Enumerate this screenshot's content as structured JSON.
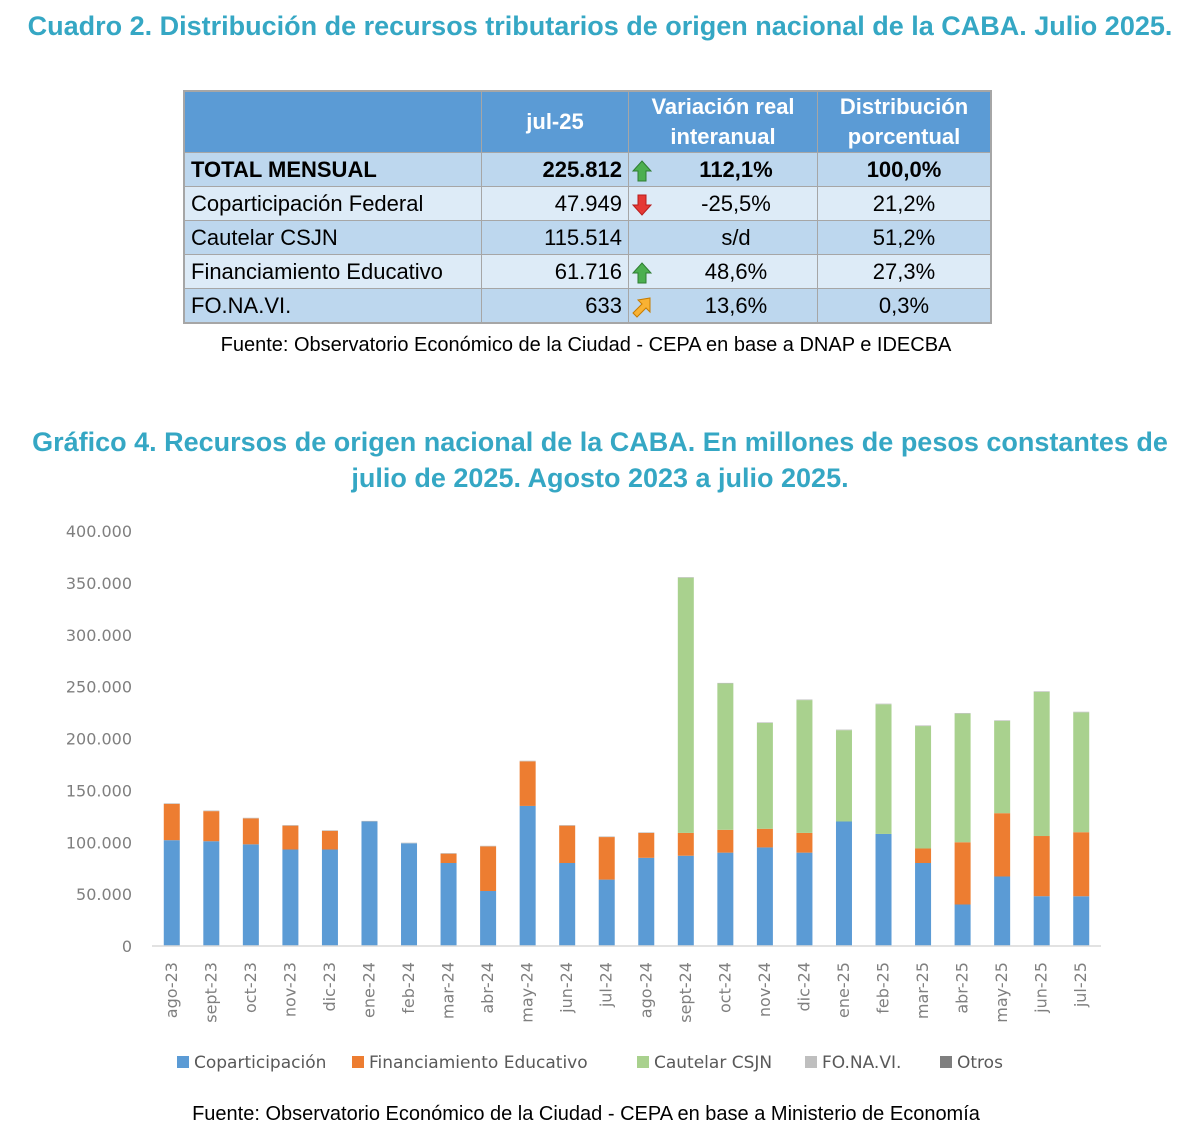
{
  "table_section": {
    "title": "Cuadro 2. Distribución de recursos tributarios de origen nacional de la CABA. Julio 2025.",
    "headers": {
      "label": "",
      "value": "jul-25",
      "variation": "Variación real interanual",
      "distribution": "Distribución porcentual"
    },
    "rows": [
      {
        "label": "TOTAL MENSUAL",
        "value": "225.812",
        "trend": "up",
        "variation": "112,1%",
        "distribution": "100,0%",
        "bold": true
      },
      {
        "label": "Coparticipación Federal",
        "value": "47.949",
        "trend": "down",
        "variation": "-25,5%",
        "distribution": "21,2%",
        "bold": false
      },
      {
        "label": "Cautelar CSJN",
        "value": "115.514",
        "trend": "none",
        "variation": "s/d",
        "distribution": "51,2%",
        "bold": false
      },
      {
        "label": "Financiamiento Educativo",
        "value": "61.716",
        "trend": "up",
        "variation": "48,6%",
        "distribution": "27,3%",
        "bold": false
      },
      {
        "label": "FO.NA.VI.",
        "value": "633",
        "trend": "up-right",
        "variation": "13,6%",
        "distribution": "0,3%",
        "bold": false
      }
    ],
    "source": "Fuente: Observatorio Económico de la Ciudad - CEPA en base a DNAP e IDECBA",
    "trend_colors": {
      "up": "#4caf50",
      "down": "#e53935",
      "up-right": "#f9b233"
    }
  },
  "chart_section": {
    "title": "Gráfico 4. Recursos de origen nacional de la CABA. En millones de pesos constantes de julio de 2025. Agosto 2023 a julio 2025.",
    "source": "Fuente: Observatorio Económico de la Ciudad - CEPA en base a Ministerio de Economía"
  },
  "chart_data": {
    "type": "bar",
    "stacked": true,
    "title": "Gráfico 4. Recursos de origen nacional de la CABA. En millones de pesos constantes de julio de 2025. Agosto 2023 a julio 2025.",
    "xlabel": "",
    "ylabel": "",
    "ylim": [
      0,
      400000
    ],
    "yticks": [
      0,
      50000,
      100000,
      150000,
      200000,
      250000,
      300000,
      350000,
      400000
    ],
    "ytick_labels": [
      "0",
      "50.000",
      "100.000",
      "150.000",
      "200.000",
      "250.000",
      "300.000",
      "350.000",
      "400.000"
    ],
    "grid": false,
    "legend_position": "bottom",
    "categories": [
      "ago-23",
      "sept-23",
      "oct-23",
      "nov-23",
      "dic-23",
      "ene-24",
      "feb-24",
      "mar-24",
      "abr-24",
      "may-24",
      "jun-24",
      "jul-24",
      "ago-24",
      "sept-24",
      "oct-24",
      "nov-24",
      "dic-24",
      "ene-25",
      "feb-25",
      "mar-25",
      "abr-25",
      "may-25",
      "jun-25",
      "jul-25"
    ],
    "series": [
      {
        "name": "Coparticipación",
        "color": "#5b9bd5",
        "values": [
          102000,
          101000,
          98000,
          93000,
          93000,
          120000,
          99000,
          80000,
          53000,
          135000,
          80000,
          64000,
          85000,
          87000,
          90000,
          95000,
          90000,
          120000,
          108000,
          80000,
          40000,
          67000,
          48000,
          47949
        ]
      },
      {
        "name": "Financiamiento Educativo",
        "color": "#ed7d31",
        "values": [
          35000,
          29000,
          25000,
          23000,
          18000,
          0,
          0,
          9000,
          43000,
          43000,
          36000,
          41000,
          24000,
          22000,
          22000,
          18000,
          19000,
          0,
          0,
          14000,
          60000,
          61000,
          58000,
          61716
        ]
      },
      {
        "name": "Cautelar CSJN",
        "color": "#a9d18e",
        "values": [
          0,
          0,
          0,
          0,
          0,
          0,
          0,
          0,
          0,
          0,
          0,
          0,
          0,
          246000,
          141000,
          102000,
          128000,
          88000,
          125000,
          118000,
          124000,
          89000,
          139000,
          115514
        ]
      },
      {
        "name": "FO.NA.VI.",
        "color": "#bfbfbf",
        "values": [
          600,
          600,
          600,
          600,
          600,
          600,
          600,
          600,
          600,
          600,
          600,
          600,
          600,
          600,
          600,
          600,
          600,
          600,
          600,
          600,
          600,
          600,
          600,
          633
        ]
      },
      {
        "name": "Otros",
        "color": "#7f7f7f",
        "values": [
          0,
          0,
          0,
          0,
          0,
          0,
          0,
          0,
          0,
          0,
          0,
          0,
          0,
          0,
          0,
          0,
          0,
          0,
          0,
          0,
          0,
          0,
          0,
          0
        ]
      }
    ]
  }
}
